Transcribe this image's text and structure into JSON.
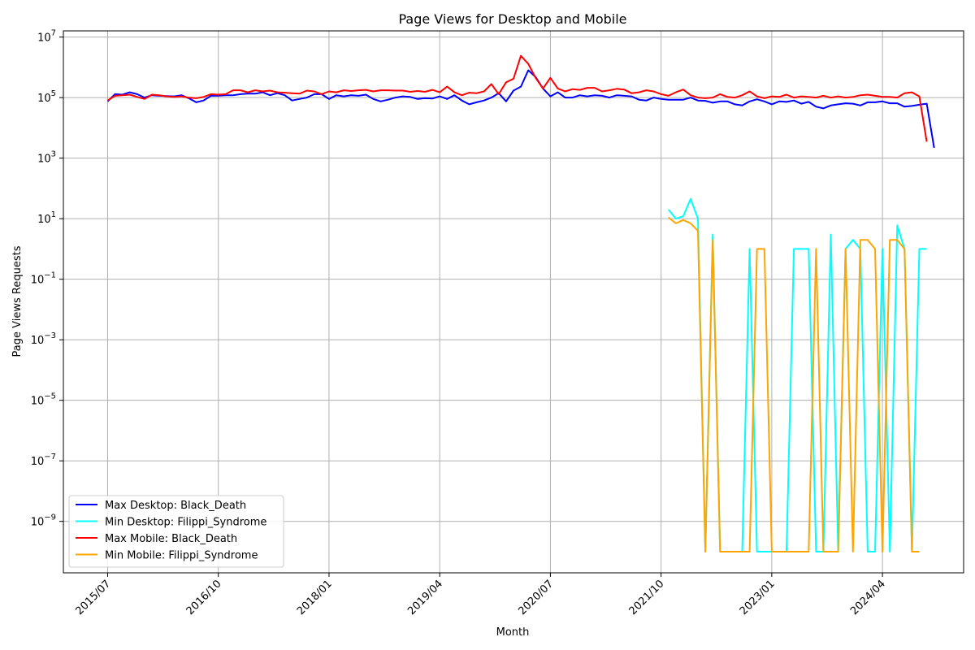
{
  "chart_data": {
    "type": "line",
    "title": "Page Views for Desktop and Mobile",
    "xlabel": "Month",
    "ylabel": "Page Views Requests",
    "yscale": "log",
    "ylim": [
      2e-11,
      16000000.0
    ],
    "xlim": [
      "2015/01",
      "2025/03"
    ],
    "grid": true,
    "legend_position": "lower-left",
    "x_ticks": [
      "2015/07",
      "2016/10",
      "2018/01",
      "2019/04",
      "2020/07",
      "2021/10",
      "2023/01",
      "2024/04"
    ],
    "y_ticks": [
      {
        "value": 1e-09,
        "base": "10",
        "exp": "−9"
      },
      {
        "value": 1e-07,
        "base": "10",
        "exp": "−7"
      },
      {
        "value": 1e-05,
        "base": "10",
        "exp": "−5"
      },
      {
        "value": 0.001,
        "base": "10",
        "exp": "−3"
      },
      {
        "value": 0.1,
        "base": "10",
        "exp": "−1"
      },
      {
        "value": 10.0,
        "base": "10",
        "exp": "1"
      },
      {
        "value": 1000.0,
        "base": "10",
        "exp": "3"
      },
      {
        "value": 100000.0,
        "base": "10",
        "exp": "5"
      },
      {
        "value": 10000000.0,
        "base": "10",
        "exp": "7"
      }
    ],
    "series": [
      {
        "name": "Max Desktop: Black_Death",
        "color": "#0000ff",
        "start": "2015/07",
        "values": [
          75000,
          130000,
          125000,
          150000,
          130000,
          100000,
          120000,
          115000,
          112000,
          110000,
          120000,
          95000,
          70000,
          80000,
          115000,
          115000,
          120000,
          120000,
          130000,
          135000,
          135000,
          150000,
          120000,
          140000,
          120000,
          80000,
          90000,
          100000,
          130000,
          130000,
          90000,
          120000,
          110000,
          120000,
          115000,
          125000,
          90000,
          75000,
          85000,
          100000,
          110000,
          105000,
          90000,
          95000,
          93000,
          110000,
          90000,
          120000,
          80000,
          60000,
          70000,
          80000,
          100000,
          140000,
          75000,
          170000,
          230000,
          800000,
          480000,
          200000,
          110000,
          150000,
          100000,
          100000,
          120000,
          110000,
          120000,
          115000,
          100000,
          120000,
          115000,
          110000,
          85000,
          80000,
          100000,
          90000,
          85000,
          85000,
          85000,
          100000,
          80000,
          78000,
          68000,
          75000,
          75000,
          60000,
          55000,
          75000,
          88000,
          75000,
          60000,
          75000,
          72000,
          80000,
          63000,
          72000,
          50000,
          44000,
          55000,
          60000,
          65000,
          63000,
          55000,
          70000,
          70000,
          75000,
          65000,
          65000,
          50000,
          53000,
          58000,
          63000,
          2200
        ]
      },
      {
        "name": "Min Desktop: Filippi_Syndrome",
        "color": "#00ffff",
        "start": "2021/11",
        "values": [
          20,
          10,
          12,
          45,
          10,
          1e-10,
          3,
          1e-10,
          1e-10,
          1e-10,
          1e-10,
          1,
          1e-10,
          1e-10,
          1e-10,
          1e-10,
          1e-10,
          1,
          1,
          1,
          1e-10,
          1e-10,
          3,
          1e-10,
          1,
          2,
          1,
          1e-10,
          1e-10,
          1,
          1e-10,
          6,
          1,
          1e-10,
          1,
          1
        ]
      },
      {
        "name": "Max Mobile: Black_Death",
        "color": "#ff0000",
        "start": "2015/07",
        "values": [
          80000,
          115000,
          120000,
          125000,
          105000,
          90000,
          125000,
          120000,
          110000,
          105000,
          110000,
          100000,
          95000,
          105000,
          130000,
          125000,
          130000,
          175000,
          175000,
          150000,
          175000,
          160000,
          170000,
          150000,
          145000,
          140000,
          135000,
          170000,
          160000,
          130000,
          160000,
          150000,
          175000,
          165000,
          175000,
          180000,
          160000,
          175000,
          175000,
          170000,
          170000,
          155000,
          165000,
          155000,
          180000,
          150000,
          230000,
          150000,
          120000,
          145000,
          140000,
          160000,
          280000,
          130000,
          320000,
          420000,
          2400000,
          1300000,
          450000,
          200000,
          450000,
          200000,
          160000,
          190000,
          180000,
          210000,
          210000,
          160000,
          175000,
          195000,
          185000,
          140000,
          150000,
          175000,
          160000,
          130000,
          115000,
          150000,
          185000,
          120000,
          100000,
          95000,
          100000,
          130000,
          105000,
          100000,
          120000,
          160000,
          110000,
          95000,
          110000,
          105000,
          125000,
          100000,
          110000,
          105000,
          100000,
          115000,
          100000,
          110000,
          100000,
          105000,
          120000,
          125000,
          115000,
          105000,
          105000,
          100000,
          140000,
          150000,
          110000,
          3500
        ]
      },
      {
        "name": "Min Mobile: Filippi_Syndrome",
        "color": "#ffa500",
        "start": "2021/11",
        "values": [
          11,
          7,
          9,
          7,
          4,
          1e-10,
          2,
          1e-10,
          1e-10,
          1e-10,
          1e-10,
          1e-10,
          1,
          1,
          1e-10,
          1e-10,
          1e-10,
          1e-10,
          1e-10,
          1e-10,
          1,
          1e-10,
          1e-10,
          1e-10,
          1,
          1e-10,
          2,
          2,
          1,
          1e-10,
          2,
          2,
          1,
          1e-10,
          1e-10
        ]
      }
    ]
  }
}
